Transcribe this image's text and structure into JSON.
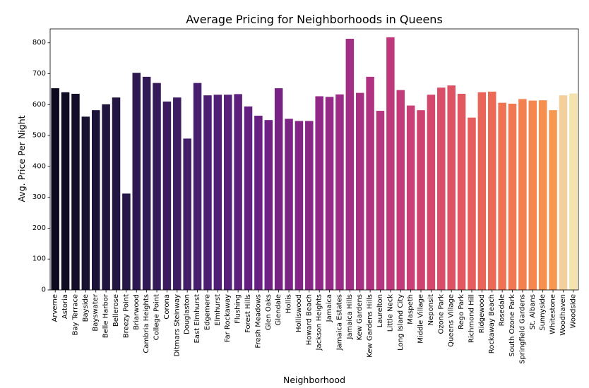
{
  "chart_data": {
    "type": "bar",
    "title": "Average Pricing for Neighborhoods in Queens",
    "xlabel": "Neighborhood",
    "ylabel": "Avg. Price Per Night",
    "ylim": [
      0,
      845
    ],
    "yticks": [
      0,
      100,
      200,
      300,
      400,
      500,
      600,
      700,
      800
    ],
    "grid": false,
    "palette": "magma",
    "categories": [
      "Arverne",
      "Astoria",
      "Bay Terrace",
      "Bayside",
      "Bayswater",
      "Belle Harbor",
      "Bellerose",
      "Breezy Point",
      "Briarwood",
      "Cambria Heights",
      "College Point",
      "Corona",
      "Ditmars Steinway",
      "Douglaston",
      "East Elmhurst",
      "Edgemere",
      "Elmhurst",
      "Far Rockaway",
      "Flushing",
      "Forest Hills",
      "Fresh Meadows",
      "Glen Oaks",
      "Glendale",
      "Hollis",
      "Holliswood",
      "Howard Beach",
      "Jackson Heights",
      "Jamaica",
      "Jamaica Estates",
      "Jamaica Hills",
      "Kew Gardens",
      "Kew Gardens Hills",
      "Laurelton",
      "Little Neck",
      "Long Island City",
      "Maspeth",
      "Middle Village",
      "Neponsit",
      "Ozone Park",
      "Queens Village",
      "Rego Park",
      "Richmond Hill",
      "Ridgewood",
      "Rockaway Beach",
      "Rosedale",
      "South Ozone Park",
      "Springfield Gardens",
      "St. Albans",
      "Sunnyside",
      "Whitestone",
      "Woodhaven",
      "Woodside"
    ],
    "values": [
      653,
      640,
      635,
      561,
      582,
      601,
      623,
      312,
      703,
      690,
      670,
      610,
      623,
      490,
      670,
      630,
      632,
      632,
      634,
      594,
      564,
      550,
      653,
      554,
      547,
      547,
      627,
      625,
      633,
      813,
      638,
      690,
      580,
      818,
      647,
      597,
      582,
      632,
      655,
      662,
      635,
      558,
      640,
      642,
      606,
      603,
      618,
      613,
      614,
      582,
      630,
      636
    ],
    "bar_colors": [
      "#0d0a1f",
      "#100c24",
      "#140e2b",
      "#181131",
      "#1c1337",
      "#20153d",
      "#241643",
      "#281849",
      "#2d194f",
      "#311a55",
      "#351b5a",
      "#3a1c5f",
      "#3e1d64",
      "#431e69",
      "#481f6e",
      "#4d1f72",
      "#521f76",
      "#58207a",
      "#5d207c",
      "#63207f",
      "#692181",
      "#6f2283",
      "#762384",
      "#7c2485",
      "#822586",
      "#892787",
      "#8f2887",
      "#962a87",
      "#9c2c86",
      "#a32e85",
      "#a93183",
      "#b03381",
      "#b6367f",
      "#bd397c",
      "#c33c79",
      "#c84075",
      "#ce4471",
      "#d4486d",
      "#d94d69",
      "#dd5265",
      "#e15861",
      "#e55e5d",
      "#e96459",
      "#ec6b56",
      "#ef7253",
      "#f17951",
      "#f3804f",
      "#f5884f",
      "#f6904f",
      "#f79851",
      "#f3cf9c",
      "#f5e3ad"
    ]
  }
}
